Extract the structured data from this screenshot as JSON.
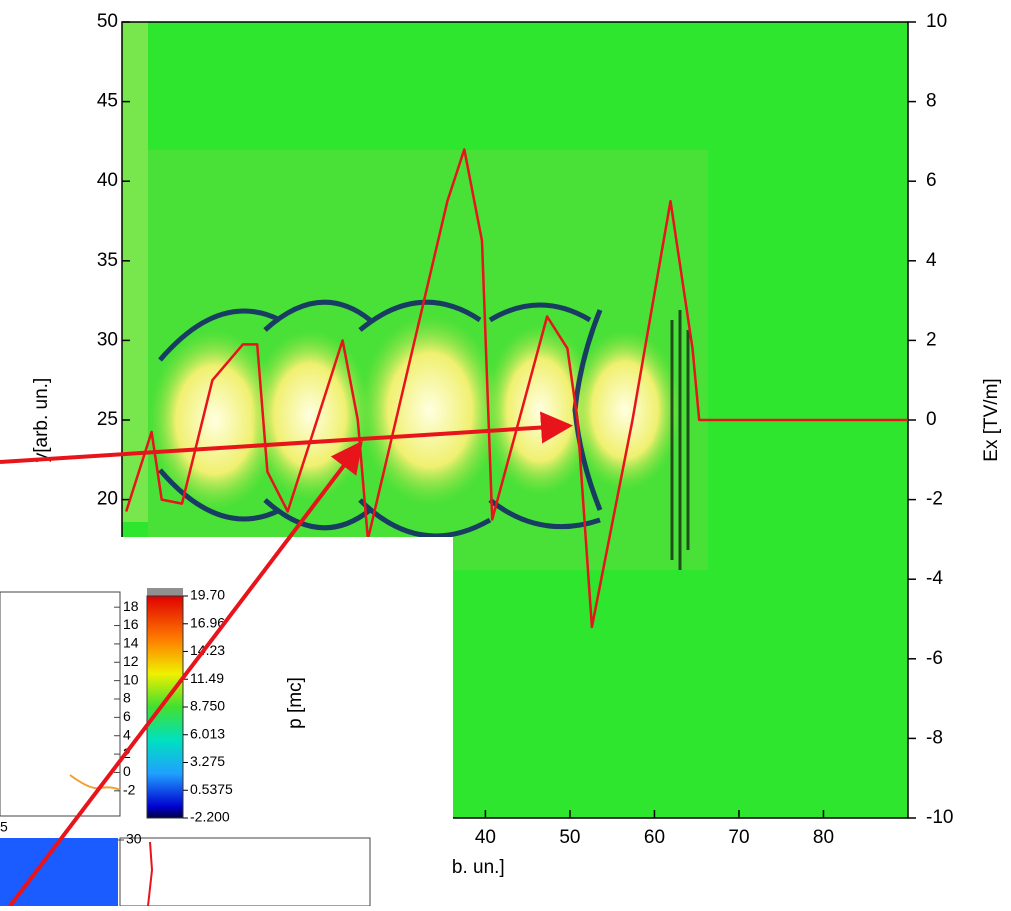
{
  "chart_data": [
    {
      "type": "line",
      "x_label": "arb. un.]",
      "y_label": "y[arb. un.]",
      "y2_label": "Ex [TV/m]",
      "xlim": [
        -3,
        90
      ],
      "xticks": [
        40,
        50,
        60,
        70,
        80
      ],
      "ylim": [
        0,
        50
      ],
      "yticks": [
        20,
        25,
        30,
        35,
        40,
        45,
        50
      ],
      "y2lim": [
        -10,
        10
      ],
      "y2ticks": [
        -10,
        -8,
        -6,
        -4,
        -2,
        0,
        2,
        4,
        6,
        8,
        10
      ],
      "x": [
        -2.5,
        0.5,
        1.7,
        4.1,
        7.7,
        11.3,
        13.0,
        14.2,
        16.6,
        23.1,
        24.9,
        26.1,
        35.5,
        37.5,
        39.6,
        40.8,
        47.3,
        49.7,
        50.9,
        52.6,
        57.4,
        61.9,
        64.5,
        65.3,
        90
      ],
      "values": [
        -2.3,
        -0.3,
        -2.0,
        -2.1,
        1.0,
        1.9,
        1.9,
        -1.3,
        -2.3,
        2.0,
        0.0,
        -3.0,
        5.5,
        6.8,
        4.5,
        -2.5,
        2.6,
        1.8,
        0,
        -5.2,
        0,
        5.5,
        1.8,
        0,
        0
      ],
      "axis": "y2",
      "color": "#e8141b",
      "colorbar": {
        "label": "p [mc]",
        "lim": [
          -2.2,
          19.7
        ],
        "ticks": [
          {
            "value": 19.7,
            "label": "19.70"
          },
          16.96,
          14.23,
          11.49,
          {
            "value": 8.75,
            "label": "8.750"
          },
          6.013,
          3.275,
          0.5375,
          {
            "value": -2.2,
            "label": "-2.200"
          }
        ]
      }
    },
    {
      "type": "line",
      "ylim": [
        -3,
        19
      ],
      "yticks": [
        -2,
        0,
        2,
        4,
        6,
        8,
        10,
        12,
        14,
        16,
        18
      ],
      "xticks": [
        5
      ]
    },
    {
      "type": "image",
      "yticks": [
        30
      ]
    }
  ]
}
